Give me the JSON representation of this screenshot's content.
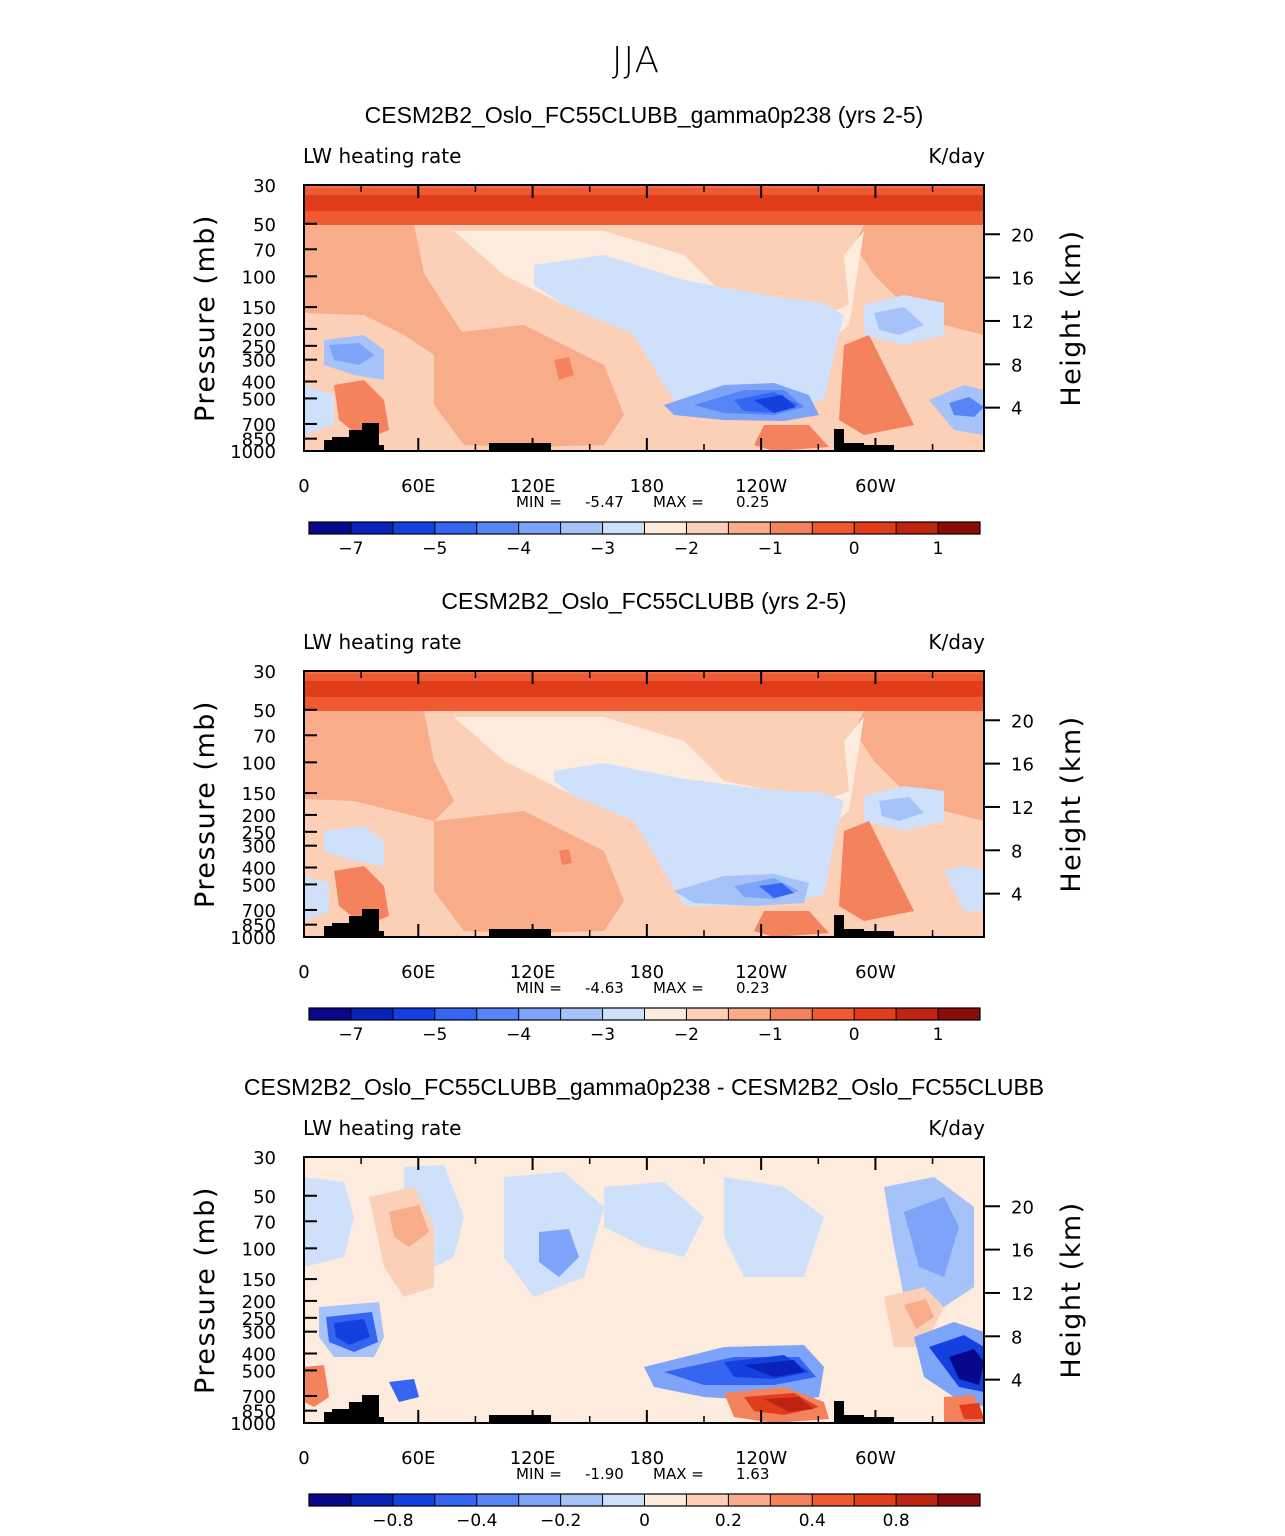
{
  "page": {
    "title": "JJA"
  },
  "colors": {
    "colorbar_bwr": [
      "#08088a",
      "#0a22b8",
      "#1540e0",
      "#3466f2",
      "#5585f7",
      "#7da4f9",
      "#a6c3f9",
      "#cfe0fb",
      "#fdebdd",
      "#fbd0b7",
      "#f8ac8a",
      "#f4835d",
      "#ef5a32",
      "#e13d1c",
      "#bf2412",
      "#8a0c0a"
    ]
  },
  "chart_data": [
    {
      "type": "contour",
      "title": "CESM2B2_Oslo_FC55CLUBB_gamma0p238 (yrs 2-5)",
      "left_label": "LW heating rate",
      "right_label": "K/day",
      "ylabel": "Pressure (mb)",
      "y2label": "Height (km)",
      "x_ticks": [
        "0",
        "60E",
        "120E",
        "180",
        "120W",
        "60W"
      ],
      "x_tick_values": [
        0,
        60,
        120,
        180,
        240,
        300
      ],
      "xlim": [
        0,
        357
      ],
      "pressure_levels": [
        "30",
        "50",
        "70",
        "100",
        "150",
        "200",
        "250",
        "300",
        "400",
        "500",
        "700",
        "850",
        "1000"
      ],
      "height_ticks": [
        "20",
        "16",
        "12",
        "8",
        "4"
      ],
      "stats": {
        "min_label": "MIN =",
        "min": "-5.47",
        "max_label": "MAX =",
        "max": "0.25"
      },
      "colorbar_labels": [
        "-7",
        "-5",
        "-4",
        "-3",
        "-2",
        "-1",
        "0",
        "1"
      ]
    },
    {
      "type": "contour",
      "title": "CESM2B2_Oslo_FC55CLUBB (yrs 2-5)",
      "left_label": "LW heating rate",
      "right_label": "K/day",
      "ylabel": "Pressure (mb)",
      "y2label": "Height (km)",
      "x_ticks": [
        "0",
        "60E",
        "120E",
        "180",
        "120W",
        "60W"
      ],
      "x_tick_values": [
        0,
        60,
        120,
        180,
        240,
        300
      ],
      "xlim": [
        0,
        357
      ],
      "pressure_levels": [
        "30",
        "50",
        "70",
        "100",
        "150",
        "200",
        "250",
        "300",
        "400",
        "500",
        "700",
        "850",
        "1000"
      ],
      "height_ticks": [
        "20",
        "16",
        "12",
        "8",
        "4"
      ],
      "stats": {
        "min_label": "MIN =",
        "min": "-4.63",
        "max_label": "MAX =",
        "max": "0.23"
      },
      "colorbar_labels": [
        "-7",
        "-5",
        "-4",
        "-3",
        "-2",
        "-1",
        "0",
        "1"
      ]
    },
    {
      "type": "contour",
      "title": "CESM2B2_Oslo_FC55CLUBB_gamma0p238 - CESM2B2_Oslo_FC55CLUBB",
      "left_label": "LW heating rate",
      "right_label": "K/day",
      "ylabel": "Pressure (mb)",
      "y2label": "Height (km)",
      "x_ticks": [
        "0",
        "60E",
        "120E",
        "180",
        "120W",
        "60W"
      ],
      "x_tick_values": [
        0,
        60,
        120,
        180,
        240,
        300
      ],
      "xlim": [
        0,
        357
      ],
      "pressure_levels": [
        "30",
        "50",
        "70",
        "100",
        "150",
        "200",
        "250",
        "300",
        "400",
        "500",
        "700",
        "850",
        "1000"
      ],
      "height_ticks": [
        "20",
        "16",
        "12",
        "8",
        "4"
      ],
      "stats": {
        "min_label": "MIN =",
        "min": "-1.90",
        "max_label": "MAX =",
        "max": "1.63"
      },
      "colorbar_labels": [
        "-0.8",
        "-0.4",
        "-0.2",
        "0",
        "0.2",
        "0.4",
        "0.8"
      ]
    }
  ]
}
